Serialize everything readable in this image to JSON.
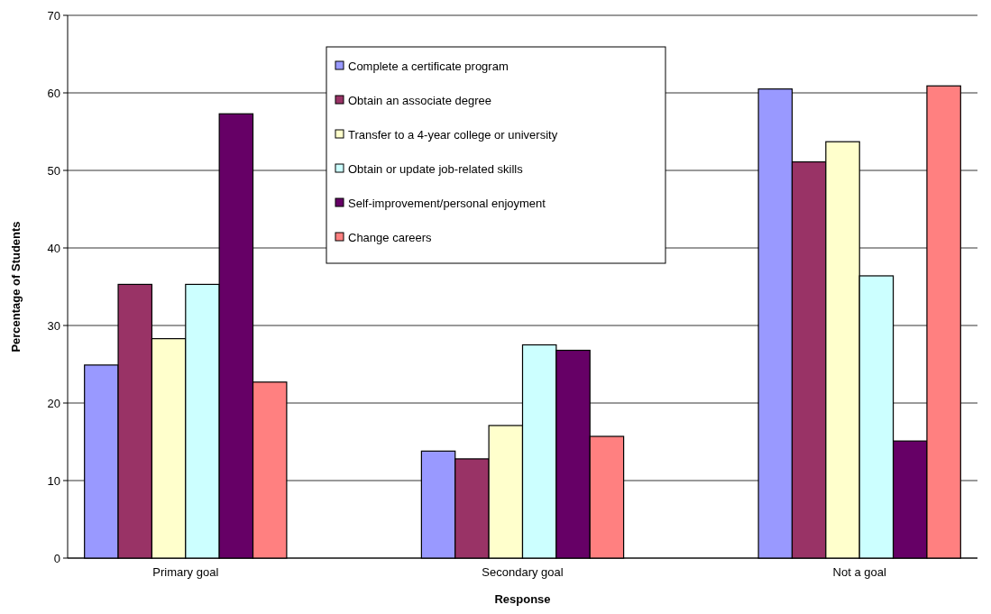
{
  "chart_data": {
    "type": "bar",
    "xlabel": "Response",
    "ylabel": "Percentage of Students",
    "categories": [
      "Primary goal",
      "Secondary goal",
      "Not a goal"
    ],
    "series": [
      {
        "name": "Complete a certificate program",
        "color": "#9999ff",
        "values": [
          24.9,
          13.8,
          60.5
        ]
      },
      {
        "name": "Obtain an associate degree",
        "color": "#993366",
        "values": [
          35.3,
          12.8,
          51.1
        ]
      },
      {
        "name": "Transfer to a 4-year college or university",
        "color": "#ffffcc",
        "values": [
          28.3,
          17.1,
          53.7
        ]
      },
      {
        "name": "Obtain or update job-related skills",
        "color": "#ccffff",
        "values": [
          35.3,
          27.5,
          36.4
        ]
      },
      {
        "name": "Self-improvement/personal enjoyment",
        "color": "#660066",
        "values": [
          57.3,
          26.8,
          15.1
        ]
      },
      {
        "name": "Change careers",
        "color": "#ff8080",
        "values": [
          22.7,
          15.7,
          60.9
        ]
      }
    ],
    "ylim": [
      0,
      70
    ],
    "yticks": [
      0,
      10,
      20,
      30,
      40,
      50,
      60,
      70
    ],
    "grid": "y",
    "legend": "top"
  }
}
